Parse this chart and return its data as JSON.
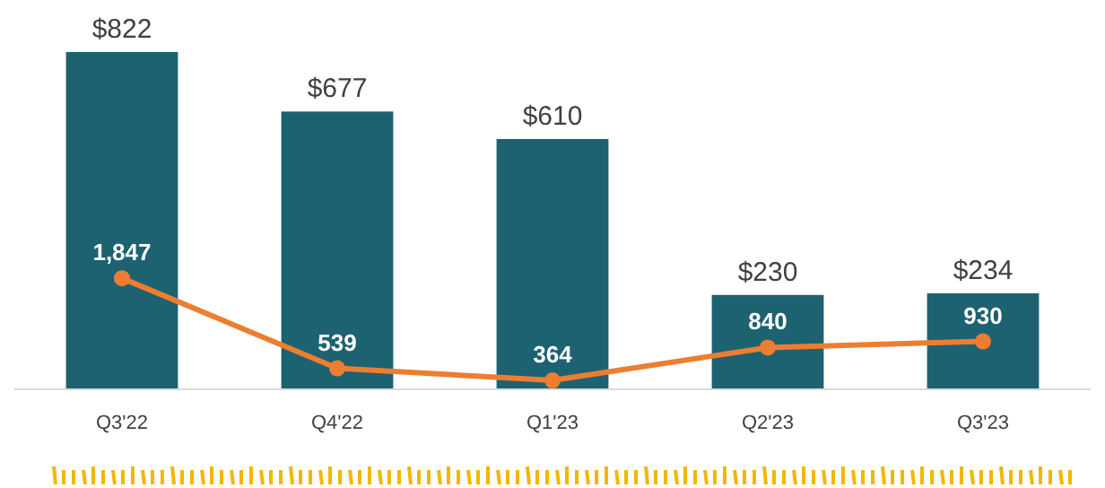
{
  "chart_data": {
    "type": "bar",
    "categories": [
      "Q3'22",
      "Q4'22",
      "Q1'23",
      "Q2'23",
      "Q3'23"
    ],
    "tick_labels": "x",
    "ylim": [
      0,
      822
    ],
    "y2lim": [
      234,
      5130
    ],
    "series": [
      {
        "color": "#1d6271",
        "values": [
          822,
          677,
          610,
          230,
          234
        ],
        "value_labels": [
          "$822",
          "$677",
          "$610",
          "$230",
          "$234"
        ]
      },
      {
        "type": "line",
        "axis": "y2",
        "color": "#ed7d31",
        "marker": "circle",
        "values": [
          1847,
          539,
          364,
          840,
          930
        ],
        "value_labels": [
          "1,847",
          "539",
          "364",
          "840",
          "930"
        ]
      }
    ]
  }
}
